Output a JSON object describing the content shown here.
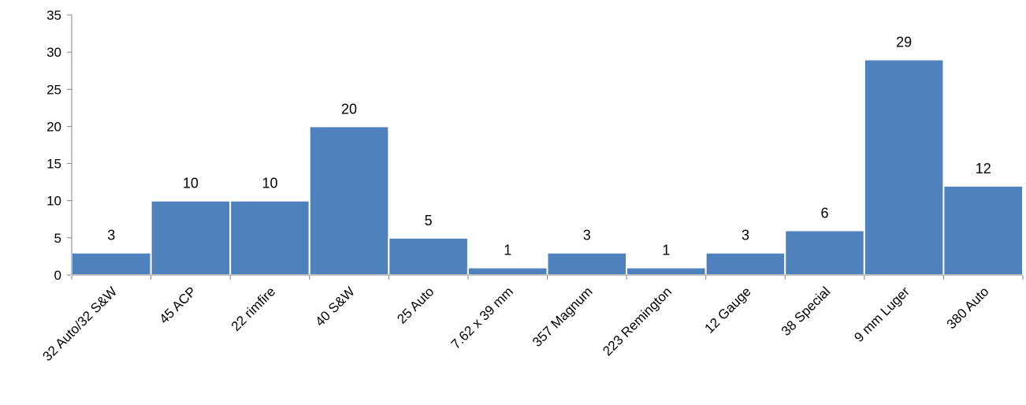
{
  "chart_data": {
    "type": "bar",
    "title": "",
    "xlabel": "",
    "ylabel": "",
    "categories": [
      "32 Auto/32 S&W",
      "45 ACP",
      "22 rimfire",
      "40 S&W",
      "25 Auto",
      "7.62 x 39 mm",
      "357 Magnum",
      "223 Remington",
      "12 Gauge",
      "38 Special",
      "9 mm Luger",
      "380 Auto"
    ],
    "values": [
      3,
      10,
      10,
      20,
      5,
      1,
      3,
      1,
      3,
      6,
      29,
      12
    ],
    "ylim": [
      0,
      35
    ],
    "yticks": [
      0,
      5,
      10,
      15,
      20,
      25,
      30,
      35
    ],
    "grid": false,
    "legend": "none",
    "bar_color": "#4F81BD",
    "data_labels": true
  }
}
